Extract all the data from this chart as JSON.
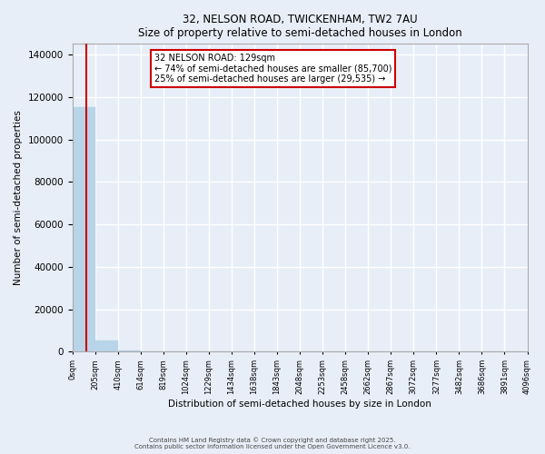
{
  "title_line1": "32, NELSON ROAD, TWICKENHAM, TW2 7AU",
  "title_line2": "Size of property relative to semi-detached houses in London",
  "annotation_line1": "32 NELSON ROAD: 129sqm",
  "annotation_line2": "← 74% of semi-detached houses are smaller (85,700)",
  "annotation_line3": "25% of semi-detached houses are larger (29,535) →",
  "xlabel": "Distribution of semi-detached houses by size in London",
  "ylabel": "Number of semi-detached properties",
  "footer_line1": "Contains HM Land Registry data © Crown copyright and database right 2025.",
  "footer_line2": "Contains public sector information licensed under the Open Government Licence v3.0.",
  "property_size_sqm": 129,
  "bin_size": 205,
  "bar_color": "#b8d4e8",
  "vline_color": "#cc0000",
  "annotation_box_edge": "#cc0000",
  "annotation_box_face": "white",
  "background_color": "#e8eef8",
  "grid_color": "white",
  "bin_labels": [
    "0sqm",
    "205sqm",
    "410sqm",
    "614sqm",
    "819sqm",
    "1024sqm",
    "1229sqm",
    "1434sqm",
    "1638sqm",
    "1843sqm",
    "2048sqm",
    "2253sqm",
    "2458sqm",
    "2662sqm",
    "2867sqm",
    "3072sqm",
    "3277sqm",
    "3482sqm",
    "3686sqm",
    "3891sqm",
    "4096sqm"
  ],
  "bar_heights": [
    115235,
    5200,
    800,
    200,
    80,
    40,
    20,
    10,
    8,
    5,
    4,
    3,
    2,
    2,
    1,
    1,
    1,
    1,
    1,
    1
  ],
  "ylim": [
    0,
    145000
  ],
  "yticks": [
    0,
    20000,
    40000,
    60000,
    80000,
    100000,
    120000,
    140000
  ]
}
